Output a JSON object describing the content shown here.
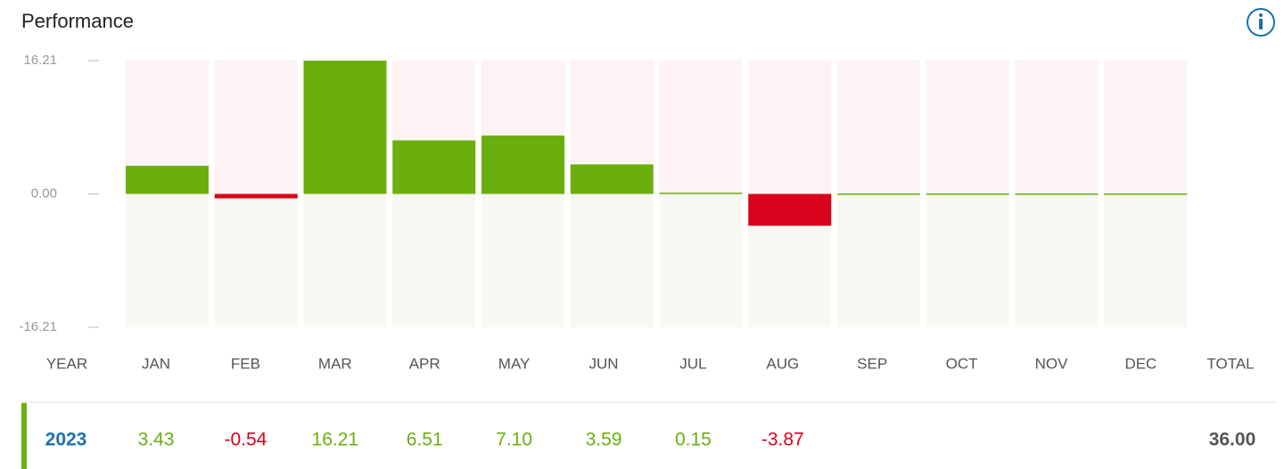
{
  "chart_data": {
    "type": "bar",
    "title": "Performance",
    "categories": [
      "JAN",
      "FEB",
      "MAR",
      "APR",
      "MAY",
      "JUN",
      "JUL",
      "AUG",
      "SEP",
      "OCT",
      "NOV",
      "DEC"
    ],
    "values": [
      3.43,
      -0.54,
      16.21,
      6.51,
      7.1,
      3.59,
      0.15,
      -3.87,
      null,
      null,
      null,
      null
    ],
    "value_labels": [
      "3.43",
      "-0.54",
      "16.21",
      "6.51",
      "7.10",
      "3.59",
      "0.15",
      "-3.87",
      null,
      null,
      null,
      null
    ],
    "positive_color": "#6aaf0e",
    "negative_color": "#d9001b",
    "ylim": [
      -16.21,
      16.21
    ],
    "yticks": [
      16.21,
      {
        "value": 0,
        "label": "0.00"
      },
      -16.21
    ],
    "row_label_header": "YEAR",
    "total_header": "TOTAL",
    "row_label": "2023",
    "total": {
      "value": 36,
      "label": "36.00"
    }
  }
}
